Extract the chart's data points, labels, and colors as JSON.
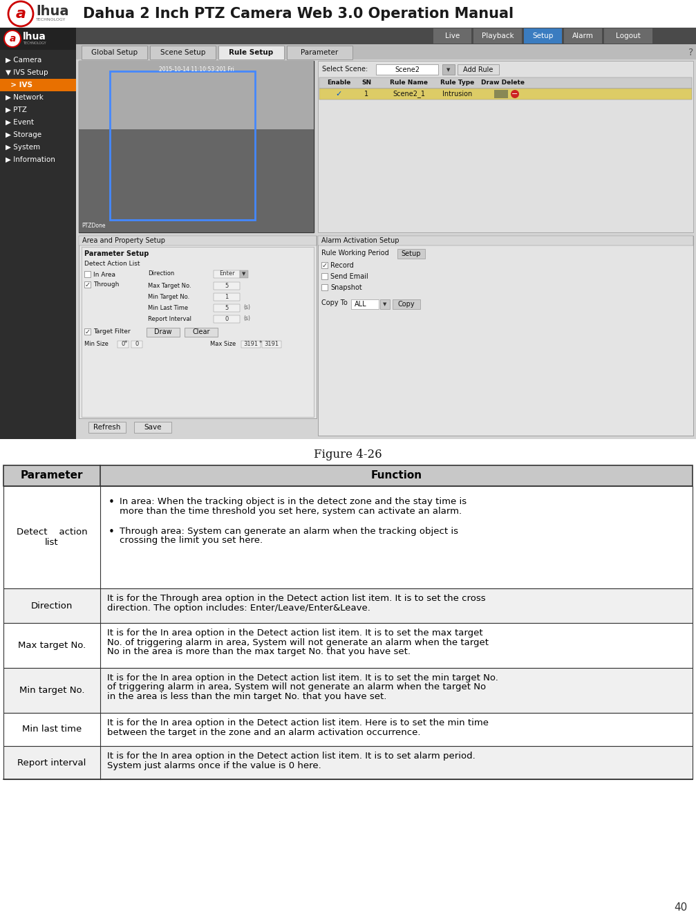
{
  "title": "Dahua 2 Inch PTZ Camera Web 3.0 Operation Manual",
  "figure_caption": "Figure 4-26",
  "page_number": "40",
  "table_header": [
    "Parameter",
    "Function"
  ],
  "table_rows": [
    {
      "parameter": "Detect    action\nlist",
      "function_bullets": [
        "In area: When the tracking object is in the detect zone and the stay time is\nmore than the time threshold you set here, system can activate an alarm.",
        "Through area: System can generate an alarm when the tracking object is\ncrossing the limit you set here."
      ],
      "is_bullet": true
    },
    {
      "parameter": "Direction",
      "function": "It is for the Through area option in the Detect action list item. It is to set the cross\ndirection. The option includes: Enter/Leave/Enter&Leave.",
      "is_bullet": false
    },
    {
      "parameter": "Max target No.",
      "function": "It is for the In area option in the Detect action list item. It is to set the max target\nNo. of triggering alarm in area, System will not generate an alarm when the target\nNo in the area is more than the max target No. that you have set.",
      "is_bullet": false
    },
    {
      "parameter": "Min target No.",
      "function": "It is for the In area option in the Detect action list item. It is to set the min target No.\nof triggering alarm in area, System will not generate an alarm when the target No\nin the area is less than the min target No. that you have set.",
      "is_bullet": false
    },
    {
      "parameter": "Min last time",
      "function": "It is for the In area option in the Detect action list item. Here is to set the min time\nbetween the target in the zone and an alarm activation occurrence.",
      "is_bullet": false
    },
    {
      "parameter": "Report interval",
      "function": "It is for the In area option in the Detect action list item. It is to set alarm period.\nSystem just alarms once if the value is 0 here.",
      "is_bullet": false
    }
  ],
  "header_bg": "#c8c8c8",
  "row_bg_light": "#ffffff",
  "row_bg_dark": "#f5f5f5",
  "border_color": "#333333",
  "header_font_size": 11,
  "body_font_size": 9.5,
  "screenshot_bg": "#aaaaaa",
  "logo_color": "#cc0000",
  "title_font_size": 15,
  "sidebar_color": "#2d2d2d",
  "sidebar_highlight": "#e87000",
  "content_bg": "#d8d8d8",
  "panel_bg": "#e0e0e0",
  "nav_bar_color": "#555555",
  "tab_selected_bg": "#e8e8e8",
  "tab_normal_bg": "#cccccc"
}
